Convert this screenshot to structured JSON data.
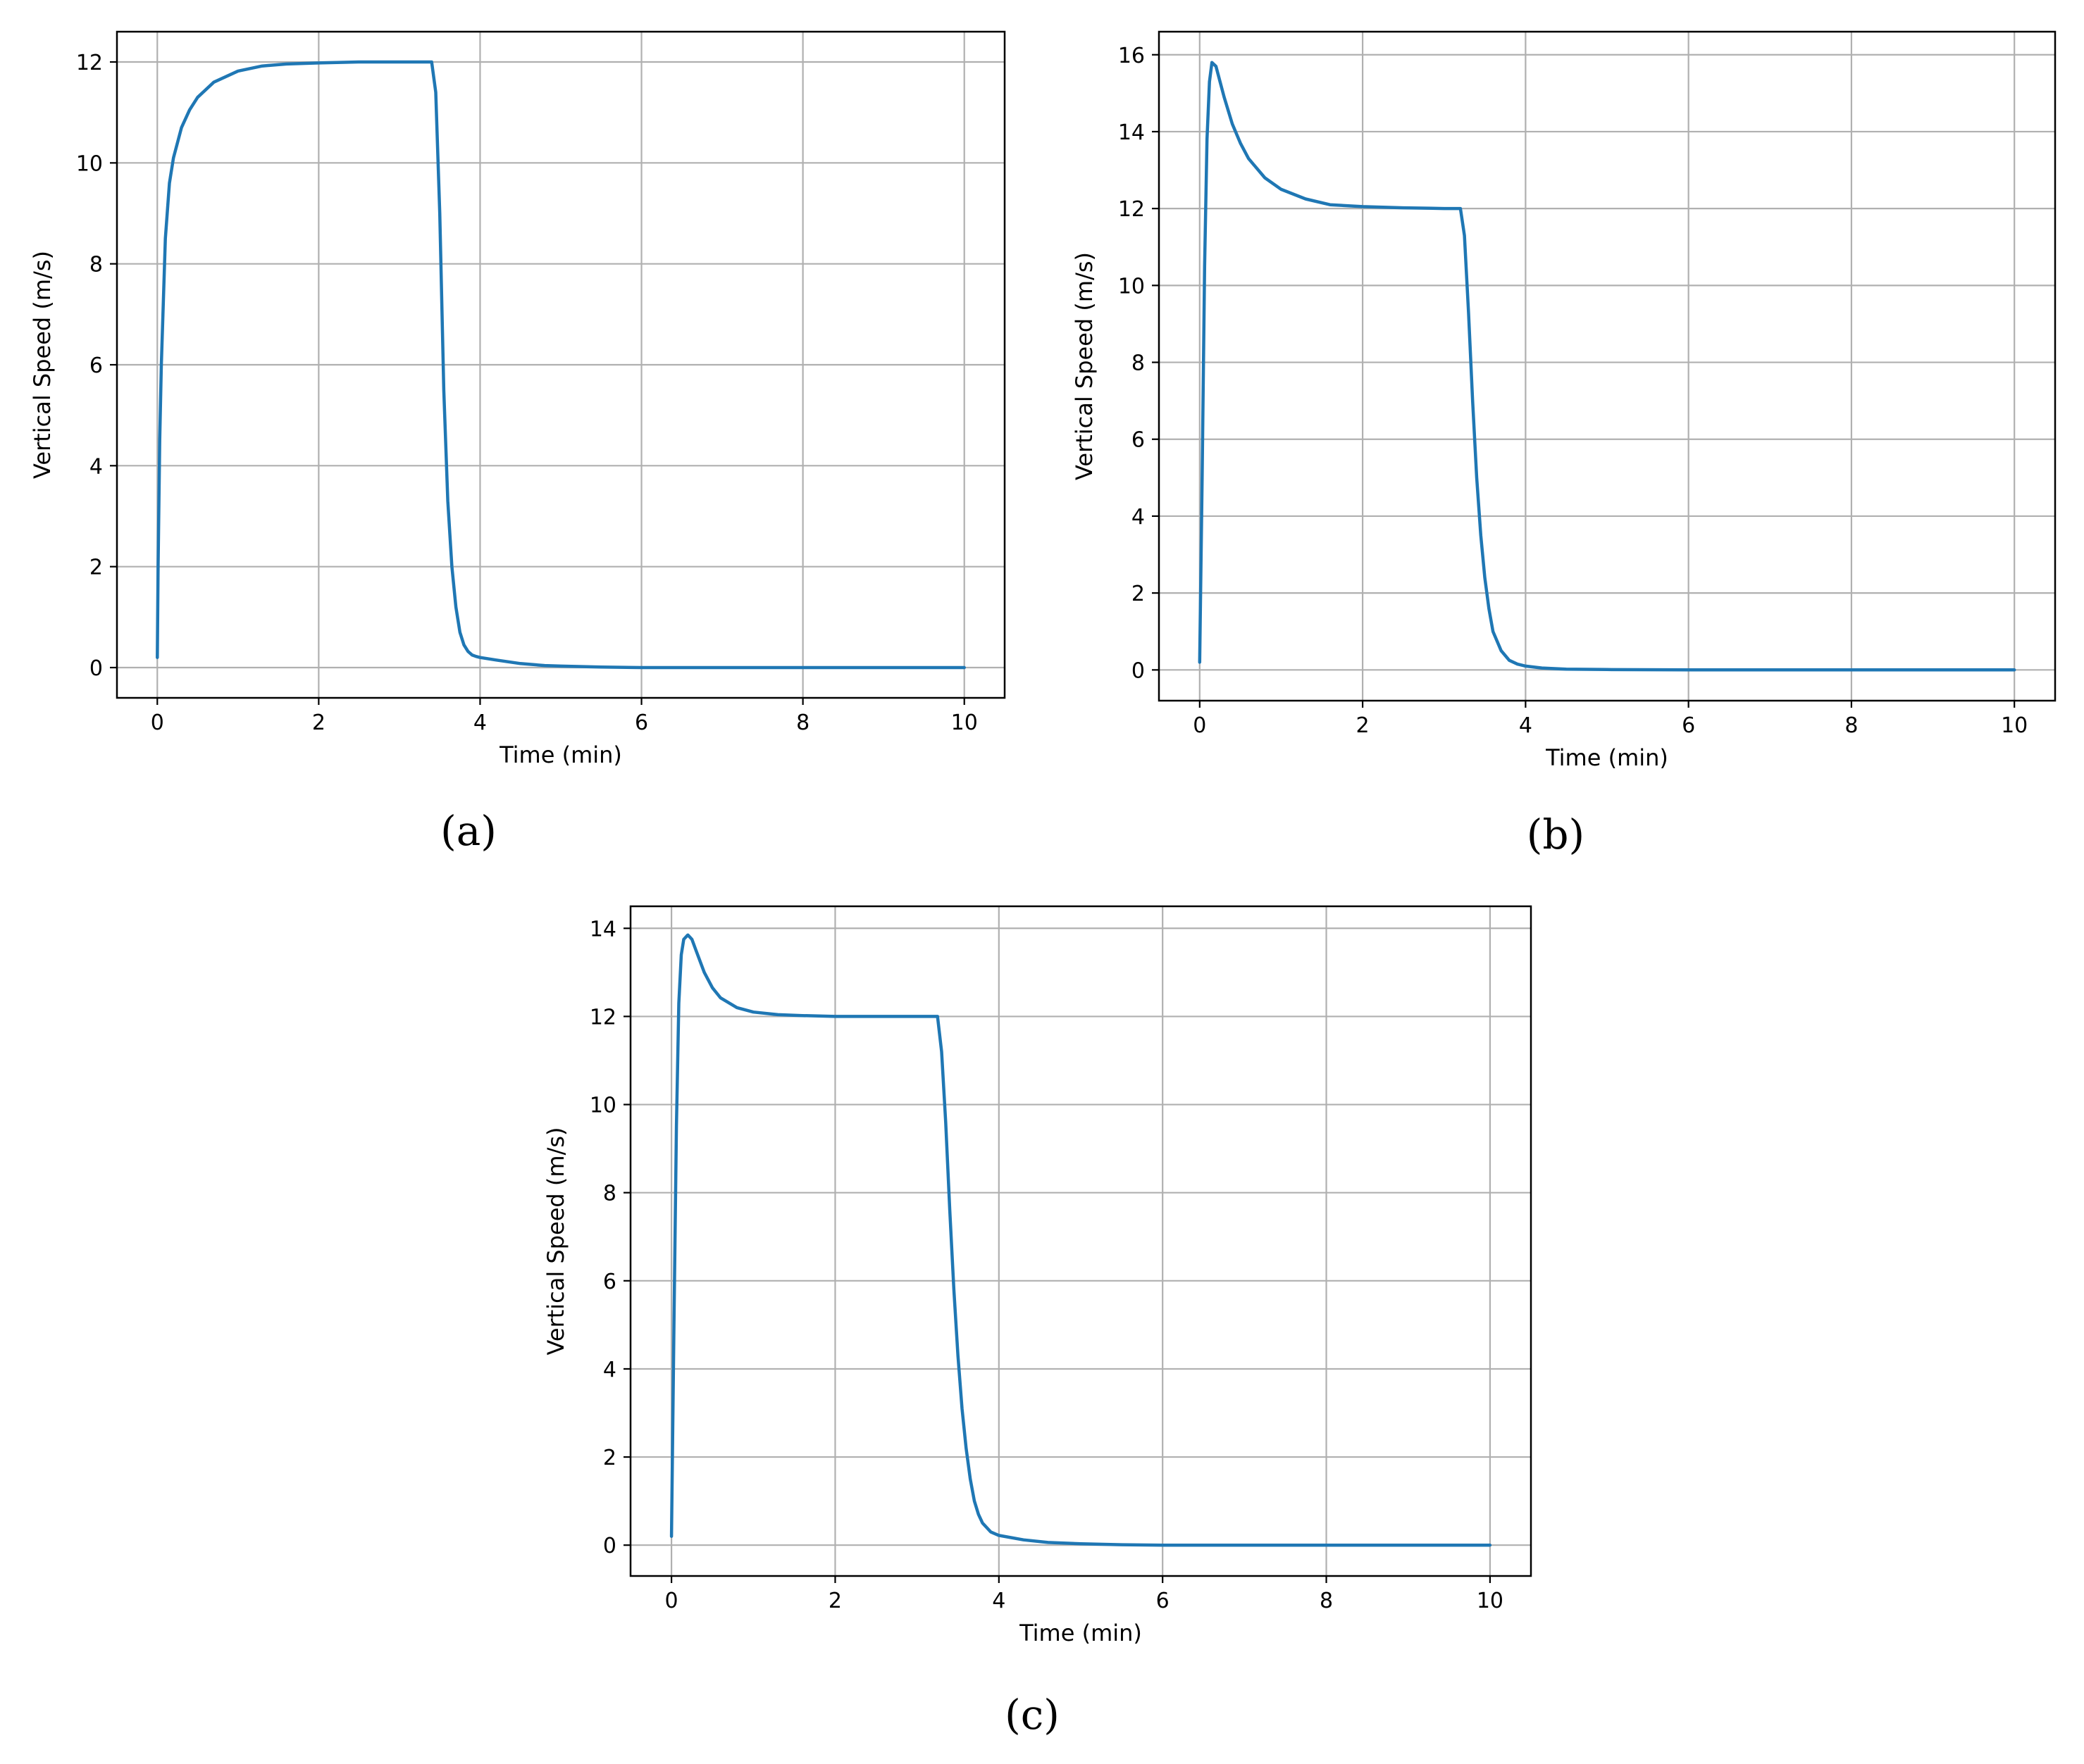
{
  "figure": {
    "panels": [
      "(a)",
      "(b)",
      "(c)"
    ]
  },
  "chart_data": [
    {
      "type": "line",
      "panel_label": "(a)",
      "xlabel": "Time (min)",
      "ylabel": "Vertical Speed (m/s)",
      "xlim": [
        -0.5,
        10.5
      ],
      "ylim": [
        -0.6,
        12.6
      ],
      "xticks": [
        0,
        2,
        4,
        6,
        8,
        10
      ],
      "yticks": [
        0,
        2,
        4,
        6,
        8,
        10,
        12
      ],
      "grid": true,
      "line_color": "#1f77b4",
      "series": [
        {
          "x": [
            0,
            0.01,
            0.03,
            0.05,
            0.1,
            0.15,
            0.2,
            0.3,
            0.4,
            0.5,
            0.7,
            1.0,
            1.3,
            1.6,
            2.0,
            2.5,
            3.0,
            3.4,
            3.45,
            3.5,
            3.55,
            3.6,
            3.65,
            3.7,
            3.75,
            3.8,
            3.85,
            3.9,
            3.95,
            4.0,
            4.2,
            4.5,
            4.8,
            5.0,
            5.5,
            6.0,
            7.0,
            8.0,
            9.0,
            10.0
          ],
          "y": [
            0.2,
            2.0,
            4.5,
            6.0,
            8.5,
            9.6,
            10.1,
            10.7,
            11.05,
            11.3,
            11.6,
            11.82,
            11.92,
            11.96,
            11.98,
            12.0,
            12.0,
            12.0,
            11.4,
            9.0,
            5.5,
            3.3,
            2.0,
            1.2,
            0.7,
            0.45,
            0.32,
            0.25,
            0.22,
            0.2,
            0.15,
            0.08,
            0.04,
            0.03,
            0.01,
            0.0,
            0.0,
            0.0,
            0.0,
            0.0
          ]
        }
      ]
    },
    {
      "type": "line",
      "panel_label": "(b)",
      "xlabel": "Time (min)",
      "ylabel": "Vertical Speed (m/s)",
      "xlim": [
        -0.5,
        10.5
      ],
      "ylim": [
        -0.8,
        16.6
      ],
      "xticks": [
        0,
        2,
        4,
        6,
        8,
        10
      ],
      "yticks": [
        0,
        2,
        4,
        6,
        8,
        10,
        12,
        14,
        16
      ],
      "grid": true,
      "line_color": "#1f77b4",
      "series": [
        {
          "x": [
            0,
            0.03,
            0.06,
            0.09,
            0.12,
            0.15,
            0.2,
            0.25,
            0.3,
            0.4,
            0.5,
            0.6,
            0.8,
            1.0,
            1.3,
            1.6,
            2.0,
            2.5,
            3.0,
            3.2,
            3.25,
            3.3,
            3.35,
            3.4,
            3.45,
            3.5,
            3.55,
            3.6,
            3.7,
            3.8,
            3.9,
            4.0,
            4.2,
            4.5,
            5.0,
            6.0,
            7.0,
            8.0,
            9.0,
            10.0
          ],
          "y": [
            0.2,
            5.0,
            10.5,
            13.8,
            15.3,
            15.8,
            15.7,
            15.3,
            14.9,
            14.2,
            13.7,
            13.3,
            12.8,
            12.5,
            12.25,
            12.1,
            12.05,
            12.02,
            12.0,
            12.0,
            11.3,
            9.3,
            7.0,
            5.0,
            3.5,
            2.4,
            1.6,
            1.0,
            0.5,
            0.25,
            0.15,
            0.1,
            0.05,
            0.02,
            0.01,
            0.0,
            0.0,
            0.0,
            0.0,
            0.0
          ]
        }
      ]
    },
    {
      "type": "line",
      "panel_label": "(c)",
      "xlabel": "Time (min)",
      "ylabel": "Vertical Speed (m/s)",
      "xlim": [
        -0.5,
        10.5
      ],
      "ylim": [
        -0.7,
        14.5
      ],
      "xticks": [
        0,
        2,
        4,
        6,
        8,
        10
      ],
      "yticks": [
        0,
        2,
        4,
        6,
        8,
        10,
        12,
        14
      ],
      "grid": true,
      "line_color": "#1f77b4",
      "series": [
        {
          "x": [
            0,
            0.03,
            0.06,
            0.09,
            0.12,
            0.15,
            0.2,
            0.25,
            0.3,
            0.4,
            0.5,
            0.6,
            0.8,
            1.0,
            1.3,
            1.6,
            2.0,
            2.5,
            3.0,
            3.25,
            3.3,
            3.35,
            3.4,
            3.45,
            3.5,
            3.55,
            3.6,
            3.65,
            3.7,
            3.75,
            3.8,
            3.9,
            4.0,
            4.3,
            4.6,
            5.0,
            5.5,
            6.0,
            7.0,
            8.0,
            9.0,
            10.0
          ],
          "y": [
            0.2,
            5.0,
            9.5,
            12.3,
            13.4,
            13.75,
            13.85,
            13.75,
            13.5,
            13.0,
            12.65,
            12.42,
            12.2,
            12.1,
            12.04,
            12.02,
            12.0,
            12.0,
            12.0,
            12.0,
            11.2,
            9.6,
            7.6,
            5.8,
            4.3,
            3.1,
            2.2,
            1.5,
            1.0,
            0.7,
            0.5,
            0.3,
            0.22,
            0.12,
            0.06,
            0.03,
            0.01,
            0.0,
            0.0,
            0.0,
            0.0,
            0.0
          ]
        }
      ]
    }
  ]
}
